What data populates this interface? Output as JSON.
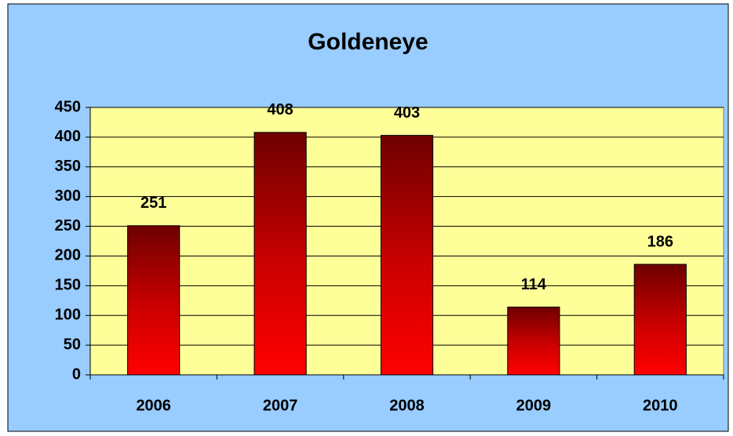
{
  "chart_data": {
    "type": "bar",
    "title": "Goldeneye",
    "categories": [
      "2006",
      "2007",
      "2008",
      "2009",
      "2010"
    ],
    "values": [
      251,
      408,
      403,
      114,
      186
    ],
    "ylim": [
      0,
      450
    ],
    "yticks": [
      0,
      50,
      100,
      150,
      200,
      250,
      300,
      350,
      400,
      450
    ],
    "grid": true,
    "color": "#ff0000"
  }
}
